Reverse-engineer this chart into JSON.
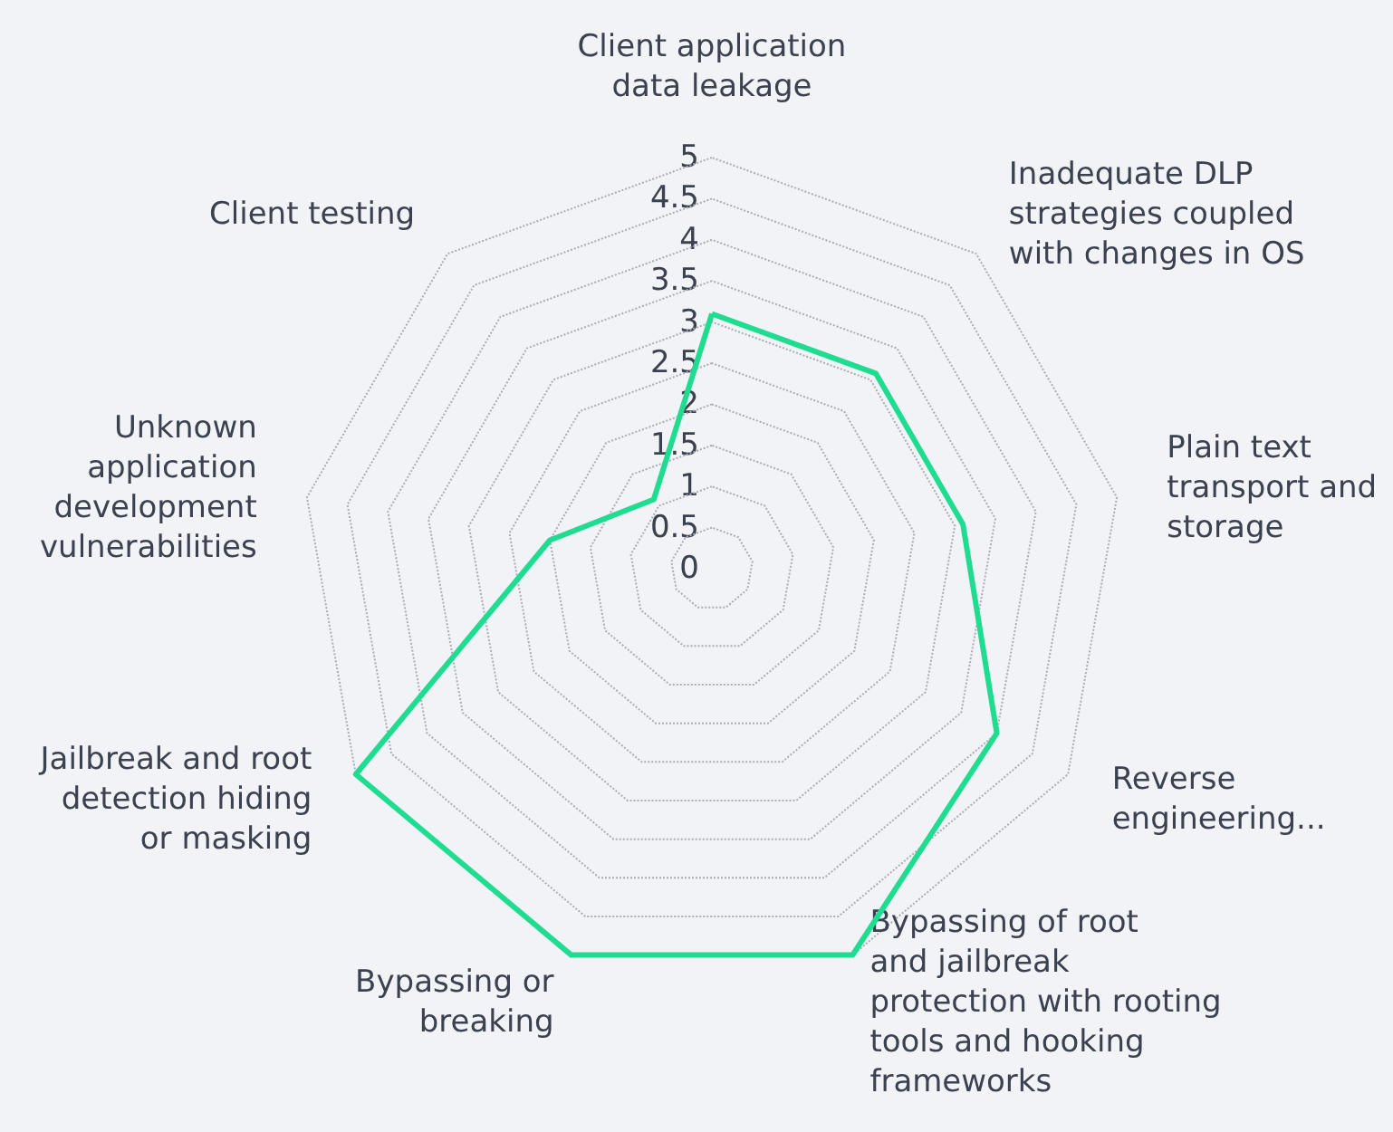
{
  "chart_data": {
    "type": "radar",
    "categories": [
      "Client application\ndata leakage",
      "Inadequate DLP\nstrategies coupled\nwith changes in OS",
      "Plain text\ntransport and\nstorage",
      "Reverse\nengineering...",
      "Bypassing of root\nand jailbreak\nprotection with rooting\ntools and hooking\nframeworks",
      "Bypassing or\nbreaking",
      "Jailbreak and root\ndetection hiding\nor masking",
      "Unknown\napplication\ndevelopment\nvulnerabilities",
      "Client testing"
    ],
    "series": [
      {
        "color": "#20dc90",
        "values": [
          3.1,
          3.1,
          3.1,
          4,
          5,
          5,
          5,
          2,
          1.1
        ]
      }
    ],
    "ylim": [
      0,
      5
    ],
    "yticks": [
      0,
      0.5,
      1,
      1.5,
      2,
      2.5,
      3,
      3.5,
      4,
      4.5,
      5
    ],
    "grid": true,
    "marker": "none"
  }
}
